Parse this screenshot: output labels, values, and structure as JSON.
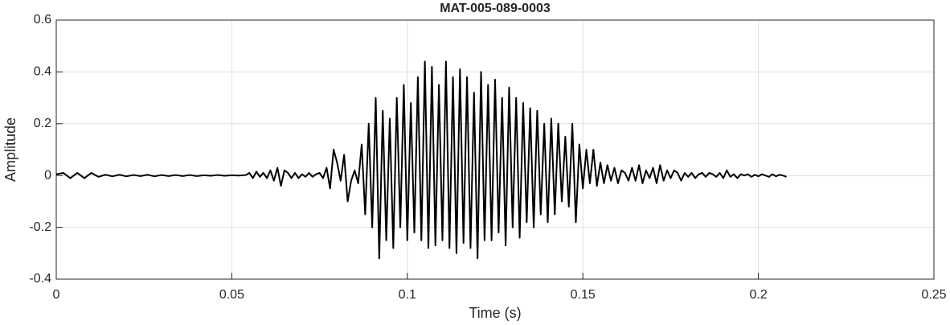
{
  "chart_data": {
    "type": "line",
    "title": "MAT-005-089-0003",
    "x_label": "Time (s)",
    "y_label": "Amplitude",
    "xlim": [
      0,
      0.25
    ],
    "xticks": [
      0,
      0.05,
      0.1,
      0.15,
      0.2,
      0.25
    ],
    "ylim": [
      -0.4,
      0.6
    ],
    "yticks": [
      -0.4,
      -0.2,
      0,
      0.2,
      0.4,
      0.6
    ],
    "grid": true,
    "series": [
      {
        "color": "#000000",
        "x": [
          0,
          0.002,
          0.004,
          0.006,
          0.008,
          0.01,
          0.012,
          0.014,
          0.016,
          0.018,
          0.02,
          0.022,
          0.024,
          0.026,
          0.028,
          0.03,
          0.032,
          0.034,
          0.036,
          0.038,
          0.04,
          0.042,
          0.044,
          0.046,
          0.048,
          0.05,
          0.052,
          0.054,
          0.055,
          0.056,
          0.057,
          0.058,
          0.059,
          0.06,
          0.061,
          0.062,
          0.063,
          0.064,
          0.065,
          0.066,
          0.067,
          0.068,
          0.069,
          0.07,
          0.071,
          0.072,
          0.073,
          0.074,
          0.075,
          0.076,
          0.077,
          0.078,
          0.079,
          0.08,
          0.081,
          0.082,
          0.083,
          0.084,
          0.085,
          0.086,
          0.087,
          0.088,
          0.089,
          0.09,
          0.091,
          0.092,
          0.093,
          0.094,
          0.095,
          0.096,
          0.097,
          0.098,
          0.099,
          0.1,
          0.101,
          0.102,
          0.103,
          0.104,
          0.105,
          0.106,
          0.107,
          0.108,
          0.109,
          0.11,
          0.111,
          0.112,
          0.113,
          0.114,
          0.115,
          0.116,
          0.117,
          0.118,
          0.119,
          0.12,
          0.121,
          0.122,
          0.123,
          0.124,
          0.125,
          0.126,
          0.127,
          0.128,
          0.129,
          0.13,
          0.131,
          0.132,
          0.133,
          0.134,
          0.135,
          0.136,
          0.137,
          0.138,
          0.139,
          0.14,
          0.141,
          0.142,
          0.143,
          0.144,
          0.145,
          0.146,
          0.147,
          0.148,
          0.149,
          0.15,
          0.151,
          0.152,
          0.153,
          0.154,
          0.155,
          0.156,
          0.157,
          0.158,
          0.159,
          0.16,
          0.161,
          0.162,
          0.163,
          0.164,
          0.165,
          0.166,
          0.167,
          0.168,
          0.169,
          0.17,
          0.171,
          0.172,
          0.173,
          0.174,
          0.175,
          0.176,
          0.177,
          0.178,
          0.179,
          0.18,
          0.181,
          0.182,
          0.183,
          0.184,
          0.185,
          0.186,
          0.187,
          0.188,
          0.189,
          0.19,
          0.191,
          0.192,
          0.193,
          0.194,
          0.195,
          0.196,
          0.197,
          0.198,
          0.199,
          0.2,
          0.201,
          0.202,
          0.203,
          0.204,
          0.205,
          0.206,
          0.207,
          0.208
        ],
        "values": [
          0.005,
          0.01,
          -0.01,
          0.01,
          -0.01,
          0.01,
          -0.005,
          0.003,
          -0.003,
          0.003,
          -0.003,
          0.002,
          -0.002,
          0.003,
          -0.003,
          0.002,
          -0.002,
          0.002,
          -0.002,
          0.002,
          -0.002,
          0.001,
          -0.001,
          0.002,
          -0.001,
          0.001,
          0,
          0.002,
          0.01,
          -0.01,
          0.015,
          -0.005,
          0.01,
          -0.01,
          0.02,
          -0.02,
          0.03,
          -0.04,
          0.02,
          0.01,
          -0.01,
          0.01,
          -0.01,
          0.005,
          -0.005,
          0.01,
          -0.005,
          0.005,
          0.01,
          -0.01,
          0.03,
          -0.05,
          0.1,
          0.05,
          -0.02,
          0.08,
          -0.1,
          -0.02,
          0.02,
          -0.03,
          0.12,
          -0.15,
          0.2,
          -0.2,
          0.3,
          -0.32,
          0.25,
          -0.25,
          0.22,
          -0.28,
          0.3,
          -0.2,
          0.35,
          -0.25,
          0.28,
          -0.22,
          0.38,
          -0.25,
          0.44,
          -0.28,
          0.42,
          -0.27,
          0.35,
          -0.25,
          0.44,
          -0.28,
          0.38,
          -0.3,
          0.41,
          -0.26,
          0.38,
          -0.28,
          0.32,
          -0.32,
          0.4,
          -0.25,
          0.35,
          -0.25,
          0.37,
          -0.22,
          0.3,
          -0.27,
          0.34,
          -0.2,
          0.3,
          -0.24,
          0.28,
          -0.18,
          0.26,
          -0.2,
          0.25,
          -0.15,
          0.2,
          -0.18,
          0.22,
          -0.15,
          0.2,
          -0.1,
          0.15,
          -0.12,
          0.2,
          -0.18,
          0.12,
          -0.05,
          0.1,
          -0.03,
          0.1,
          -0.04,
          0.05,
          -0.03,
          0.04,
          -0.02,
          0.03,
          -0.03,
          0.02,
          0.01,
          -0.02,
          0.03,
          -0.02,
          0.04,
          -0.03,
          0.02,
          -0.01,
          0.03,
          -0.03,
          0.04,
          -0.02,
          0.02,
          -0.01,
          0.02,
          0.01,
          -0.02,
          0.01,
          -0.005,
          0.01,
          -0.01,
          0.005,
          0.01,
          -0.005,
          0.01,
          0.005,
          -0.005,
          0.01,
          -0.01,
          0.02,
          -0.005,
          0.005,
          -0.01,
          0.005,
          0,
          0.005,
          -0.005,
          0.003,
          -0.003,
          0.005,
          0,
          -0.005,
          0.005,
          -0.003,
          0.003,
          0,
          -0.005
        ]
      }
    ]
  }
}
